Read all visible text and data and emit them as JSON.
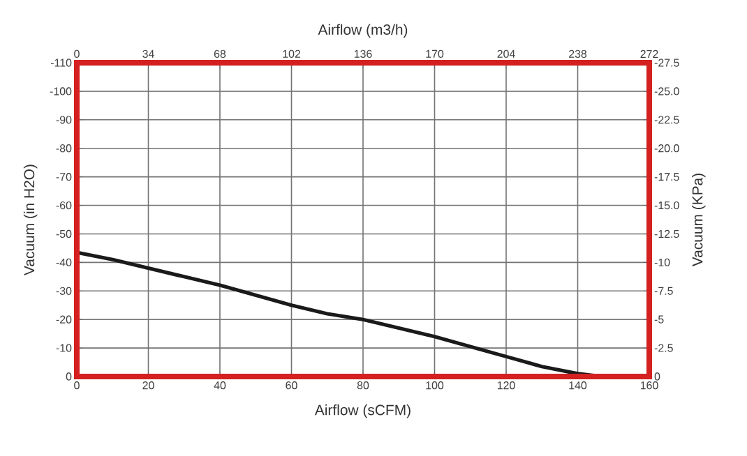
{
  "chart_data": {
    "type": "line",
    "xlabel": "Airflow (sCFM)",
    "ylabel": "Vacuum (in H2O)",
    "x2label": "Airflow (m3/h)",
    "y2label": "Vacuum (KPa)",
    "xlim": [
      0,
      160
    ],
    "xticks": [
      0,
      20,
      40,
      60,
      80,
      100,
      120,
      140,
      160
    ],
    "ylim": [
      0,
      -110
    ],
    "yticks": [
      0,
      -10,
      -20,
      -30,
      -40,
      -50,
      -60,
      -70,
      -80,
      -90,
      -100,
      -110
    ],
    "x2lim": [
      0,
      272
    ],
    "x2ticks": [
      0,
      34,
      68,
      102,
      136,
      170,
      204,
      238,
      272
    ],
    "y2lim": [
      0,
      -27.5
    ],
    "y2ticks": [
      0,
      -2.5,
      -5,
      -7.5,
      -10,
      -12.5,
      {
        "value": -15,
        "label": "-15.0"
      },
      -17.5,
      {
        "value": -20,
        "label": "-20.0"
      },
      -22.5,
      {
        "value": -25,
        "label": "-25.0"
      },
      -27.5
    ],
    "grid": true,
    "marker": "none",
    "line_style": "solid",
    "series": [
      {
        "color": "#1a1a1a",
        "x": [
          0,
          10,
          20,
          30,
          40,
          50,
          60,
          70,
          80,
          90,
          100,
          110,
          120,
          130,
          140,
          147
        ],
        "values": [
          -43.5,
          -41,
          -38,
          -35,
          -32,
          -28.5,
          -25,
          -22,
          -20,
          -17,
          -14,
          -10.5,
          -7,
          -3.5,
          -1,
          0
        ]
      }
    ]
  }
}
